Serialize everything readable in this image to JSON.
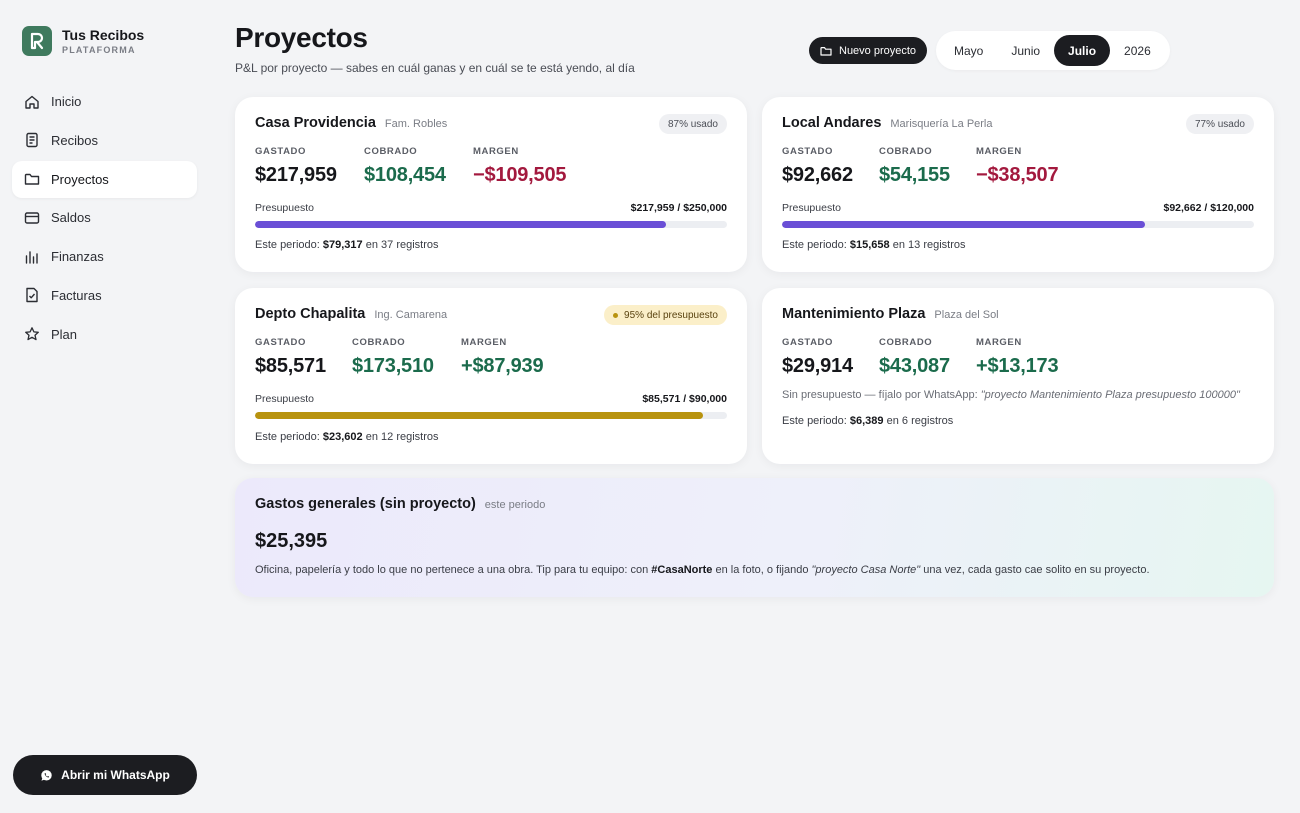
{
  "brand": {
    "name": "Tus Recibos",
    "sub": "PLATAFORMA"
  },
  "nav": {
    "items": [
      {
        "label": "Inicio",
        "icon": "home-icon"
      },
      {
        "label": "Recibos",
        "icon": "receipt-icon"
      },
      {
        "label": "Proyectos",
        "icon": "folder-icon",
        "active": true
      },
      {
        "label": "Saldos",
        "icon": "wallet-icon"
      },
      {
        "label": "Finanzas",
        "icon": "chart-icon"
      },
      {
        "label": "Facturas",
        "icon": "invoice-icon"
      },
      {
        "label": "Plan",
        "icon": "star-icon"
      }
    ]
  },
  "whatsapp_button": "Abrir mi WhatsApp",
  "header": {
    "title": "Proyectos",
    "subtitle": "P&L por proyecto — sabes en cuál ganas y en cuál se te está yendo, al día",
    "new_project": "Nuevo proyecto",
    "periods": [
      "Mayo",
      "Junio",
      "Julio",
      "2026"
    ],
    "active_period": "Julio"
  },
  "labels": {
    "spent": "GASTADO",
    "collected": "COBRADO",
    "margin": "MARGEN",
    "budget": "Presupuesto",
    "this_period": "Este periodo:",
    "records_in": "en",
    "records": "registros"
  },
  "projects": [
    {
      "name": "Casa Providencia",
      "client": "Fam. Robles",
      "badge": "87% usado",
      "badge_warn": false,
      "spent": "$217,959",
      "collected": "$108,454",
      "margin": "−$109,505",
      "margin_positive": false,
      "budget_text": "$217,959 / $250,000",
      "budget_used": 0.87,
      "period_amount": "$79,317",
      "period_count": "37",
      "bar_color": "#6a4fd6"
    },
    {
      "name": "Local Andares",
      "client": "Marisquería La Perla",
      "badge": "77% usado",
      "badge_warn": false,
      "spent": "$92,662",
      "collected": "$54,155",
      "margin": "−$38,507",
      "margin_positive": false,
      "budget_text": "$92,662 / $120,000",
      "budget_used": 0.77,
      "period_amount": "$15,658",
      "period_count": "13",
      "bar_color": "#6a4fd6"
    },
    {
      "name": "Depto Chapalita",
      "client": "Ing. Camarena",
      "badge": "95% del presupuesto",
      "badge_warn": true,
      "spent": "$85,571",
      "collected": "$173,510",
      "margin": "+$87,939",
      "margin_positive": true,
      "budget_text": "$85,571 / $90,000",
      "budget_used": 0.95,
      "period_amount": "$23,602",
      "period_count": "12",
      "bar_color": "#b8930f"
    },
    {
      "name": "Mantenimiento Plaza",
      "client": "Plaza del Sol",
      "spent": "$29,914",
      "collected": "$43,087",
      "margin": "+$13,173",
      "margin_positive": true,
      "no_budget_text": "Sin presupuesto — fíjalo por WhatsApp:",
      "no_budget_example": "\"proyecto Mantenimiento Plaza presupuesto 100000\"",
      "period_amount": "$6,389",
      "period_count": "6"
    }
  ],
  "general": {
    "title": "Gastos generales (sin proyecto)",
    "sub": "este periodo",
    "amount": "$25,395",
    "desc_1": "Oficina, papelería y todo lo que no pertenece a una obra. Tip para tu equipo: con",
    "desc_tag": "#CasaNorte",
    "desc_2": "en la foto, o fijando",
    "desc_example": "\"proyecto Casa Norte\"",
    "desc_3": "una vez, cada gasto cae solito en su proyecto."
  },
  "colors": {
    "accent_purple": "#6a4fd6",
    "warn_gold": "#b8930f",
    "positive_green": "#1b6b4c",
    "negative_red": "#a3193e",
    "brand_green": "#3f7a5e"
  }
}
